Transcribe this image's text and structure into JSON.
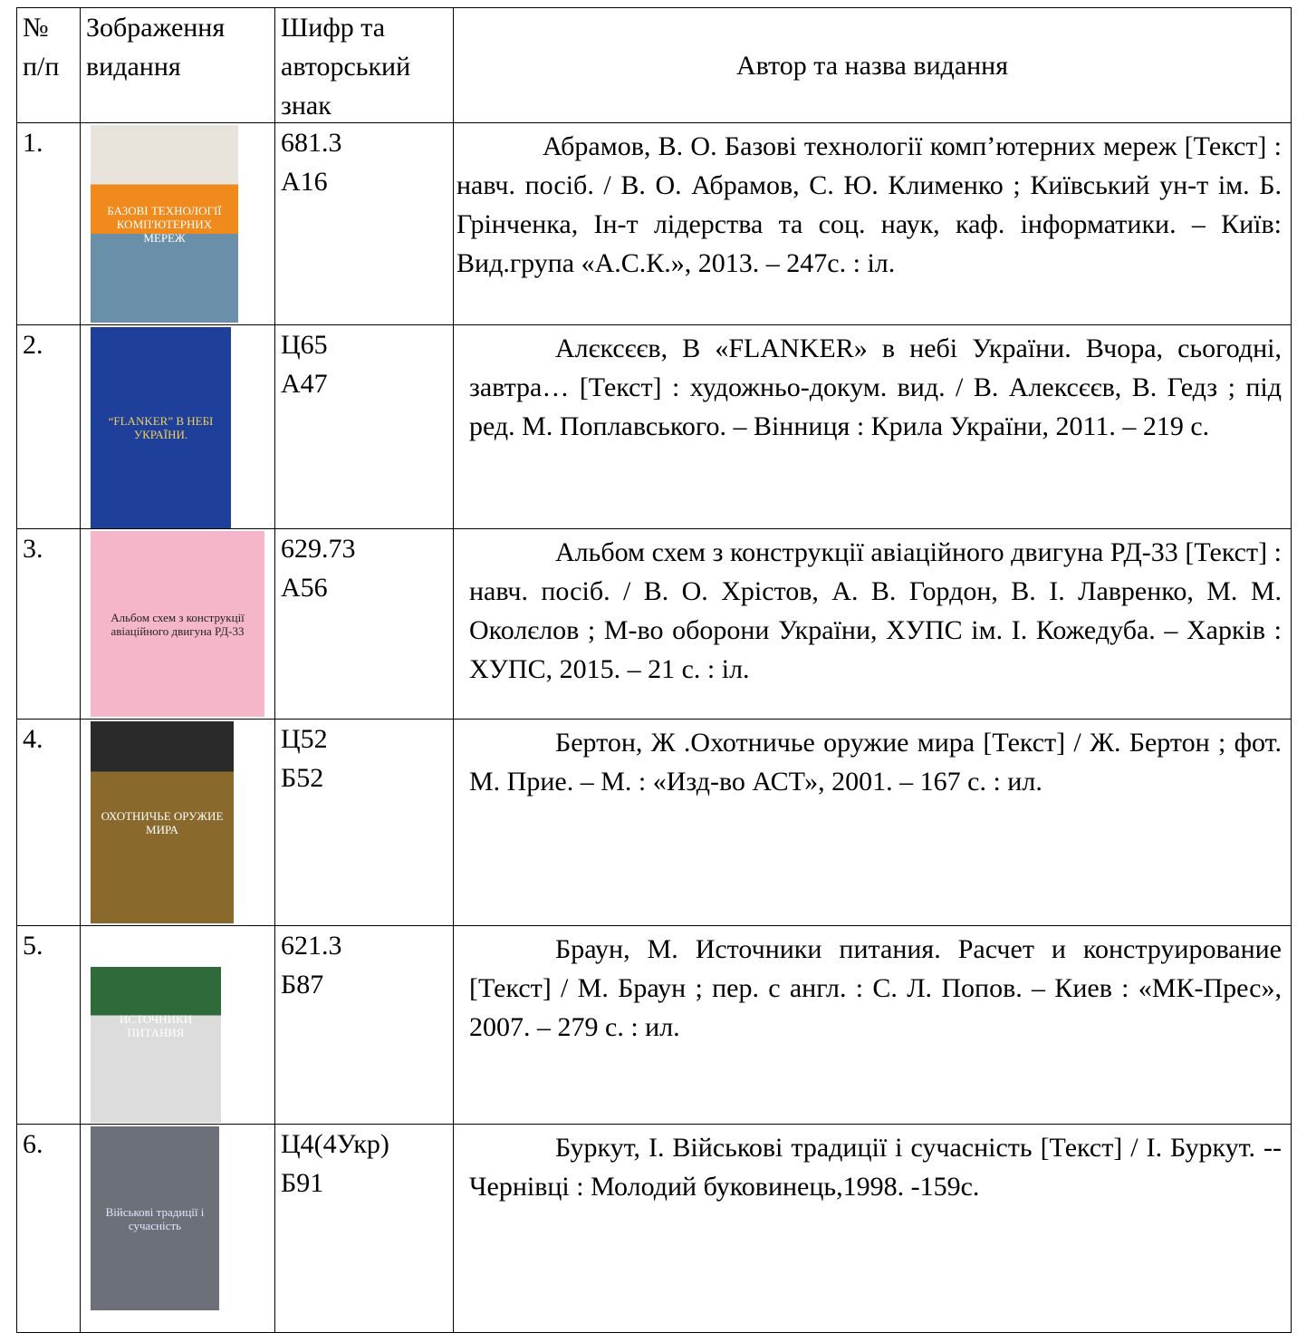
{
  "table": {
    "header": [
      [
        "№",
        "п/п"
      ],
      [
        "Зображення",
        "видання"
      ],
      [
        "Шифр та",
        "авторський",
        "знак"
      ],
      [
        "Автор та назва видання"
      ]
    ],
    "rows": [
      {
        "number": "1.",
        "cover": "БАЗОВІ ТЕХНОЛОГІЇ КОМП'ЮТЕРНИХ МЕРЕЖ",
        "code": [
          "681.3",
          "А16"
        ],
        "description": "Абрамов, В. О. Базові технології комп’ютерних мереж [Текст] : навч. посіб. / В. О. Абрамов, С. Ю. Клименко ; Київський ун-т ім. Б. Грінченка, Ін-т лідерства та соц. наук, каф. інформатики. – Київ: Вид.група «А.С.К.», 2013. – 247с. : іл."
      },
      {
        "number": "2.",
        "cover": "“FLANKER” В НЕБІ УКРАЇНИ.",
        "code": [
          "Ц65",
          "А47"
        ],
        "description": "Алєксєєв, В «FLANKER» в небі України. Вчора, сьогодні, завтра… [Текст] : художньо-докум. вид. / В. Алексєєв, В. Гедз ; під ред. М. Поплавського. – Вінниця : Крила України, 2011. – 219 с."
      },
      {
        "number": "3.",
        "cover": "Альбом схем з конструкції авіаційного двигуна РД-33",
        "code": [
          "629.73",
          "А56"
        ],
        "description": "Альбом схем з конструкції авіаційного двигуна РД-33 [Текст] : навч. посіб. / В. О. Хрістов, А. В. Гордон, В. І. Лавренко, М. М. Околєлов ; М-во оборони України, ХУПС ім. І. Кожедуба. – Харків : ХУПС, 2015. – 21 с. : іл."
      },
      {
        "number": "4.",
        "cover": "ОХОТНИЧЬЕ ОРУЖИЕ МИРА",
        "code": [
          "Ц52",
          "Б52"
        ],
        "description": "Бертон, Ж .Охотничье оружие мира [Текст] / Ж. Бертон ; фот. М. Прие. – М. : «Изд-во АСТ», 2001. – 167 с. : ил."
      },
      {
        "number": "5.",
        "cover": "ИСТОЧНИКИ ПИТАНИЯ",
        "code": [
          "621.3",
          "Б87"
        ],
        "description": "Браун, М. Источники питания. Расчет и конструирование [Текст] / М. Браун ; пер. с англ. : С. Л. Попов. – Киев : «МК-Прес», 2007. – 279 с. : ил."
      },
      {
        "number": "6.",
        "cover": "Військові традиції і сучасність",
        "code": [
          "Ц4(4Укр)",
          "Б91"
        ],
        "description": "Буркут, І. Військові традиції і сучасність [Текст] / І. Буркут. -- Чернівці : Молодий буковинець,1998. -159с."
      }
    ]
  }
}
